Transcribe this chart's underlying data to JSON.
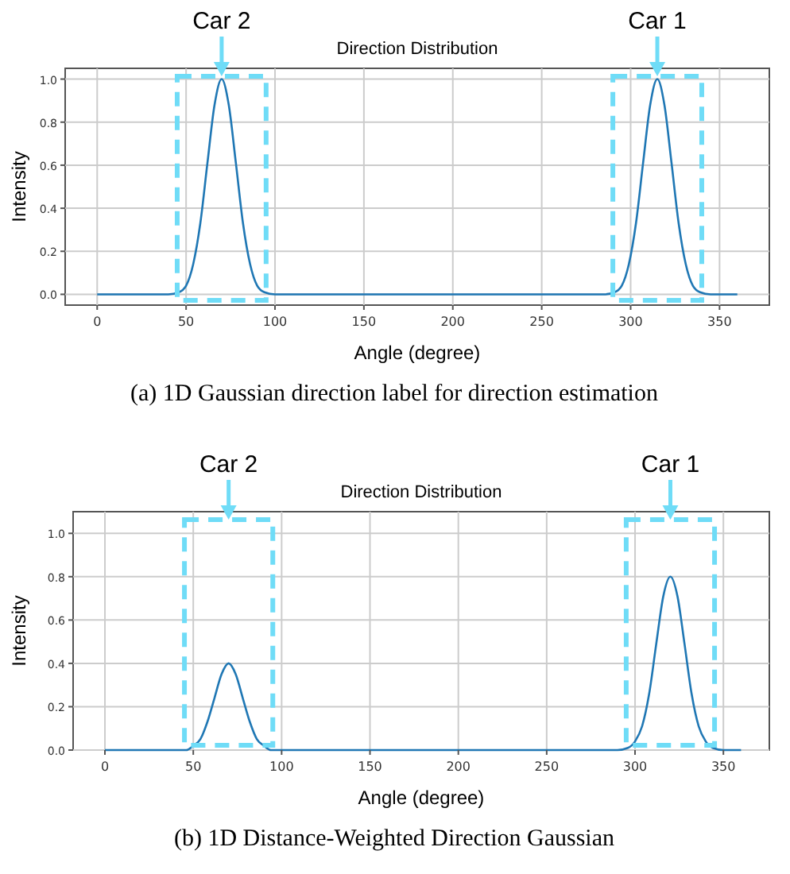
{
  "chart_data": [
    {
      "type": "line",
      "title": "Direction Distribution",
      "xlabel": "Angle (degree)",
      "ylabel": "Intensity",
      "xlim": [
        -18,
        378
      ],
      "ylim": [
        -0.05,
        1.05
      ],
      "xticks": [
        0,
        50,
        100,
        150,
        200,
        250,
        300,
        350
      ],
      "yticks": [
        {
          "value": 0,
          "label": "0.0"
        },
        {
          "value": 0.2,
          "label": "0.2"
        },
        {
          "value": 0.4,
          "label": "0.4"
        },
        {
          "value": 0.6,
          "label": "0.6"
        },
        {
          "value": 0.8,
          "label": "0.8"
        },
        {
          "value": 1,
          "label": "1.0"
        }
      ],
      "grid": true,
      "x": [
        0,
        40,
        46,
        50,
        54,
        58,
        62,
        66,
        70,
        74,
        78,
        82,
        86,
        90,
        94,
        100,
        200,
        285,
        291,
        295,
        299,
        303,
        307,
        311,
        315,
        319,
        323,
        327,
        331,
        335,
        339,
        345,
        360
      ],
      "series": [
        {
          "color": "#1f77b4",
          "values": [
            0,
            0,
            0.01,
            0.04,
            0.14,
            0.33,
            0.61,
            0.88,
            1,
            0.88,
            0.61,
            0.33,
            0.14,
            0.04,
            0.01,
            0,
            0,
            0,
            0.01,
            0.04,
            0.14,
            0.33,
            0.61,
            0.88,
            1,
            0.88,
            0.61,
            0.33,
            0.14,
            0.04,
            0.01,
            0,
            0
          ]
        }
      ],
      "annotations": [
        "Car 2",
        "Car 1",
        "(a) 1D Gaussian direction label for direction estimation"
      ]
    },
    {
      "type": "line",
      "title": "Direction Distribution",
      "xlabel": "Angle (degree)",
      "ylabel": "Intensity",
      "xlim": [
        -18,
        376
      ],
      "ylim": [
        0,
        1.1
      ],
      "xticks": [
        0,
        50,
        100,
        150,
        200,
        250,
        300,
        350
      ],
      "yticks": [
        {
          "value": 0,
          "label": "0.0"
        },
        {
          "value": 0.2,
          "label": "0.2"
        },
        {
          "value": 0.4,
          "label": "0.4"
        },
        {
          "value": 0.6,
          "label": "0.6"
        },
        {
          "value": 0.8,
          "label": "0.8"
        },
        {
          "value": 1,
          "label": "1.0"
        }
      ],
      "grid": true,
      "x": [
        0,
        40,
        46,
        50,
        54,
        58,
        62,
        66,
        70,
        74,
        78,
        82,
        86,
        90,
        94,
        100,
        200,
        290,
        296,
        300,
        304,
        308,
        312,
        316,
        320,
        324,
        328,
        332,
        336,
        340,
        344,
        350,
        360
      ],
      "series": [
        {
          "color": "#1f77b4",
          "values": [
            0,
            0,
            0,
            0.02,
            0.05,
            0.13,
            0.24,
            0.35,
            0.4,
            0.35,
            0.24,
            0.13,
            0.05,
            0.02,
            0,
            0,
            0,
            0,
            0.01,
            0.04,
            0.11,
            0.26,
            0.49,
            0.71,
            0.8,
            0.71,
            0.49,
            0.26,
            0.11,
            0.04,
            0.01,
            0,
            0
          ]
        }
      ],
      "annotations": [
        "Car 2",
        "Car 1",
        "(b) 1D Distance-Weighted Direction Gaussian"
      ]
    }
  ]
}
